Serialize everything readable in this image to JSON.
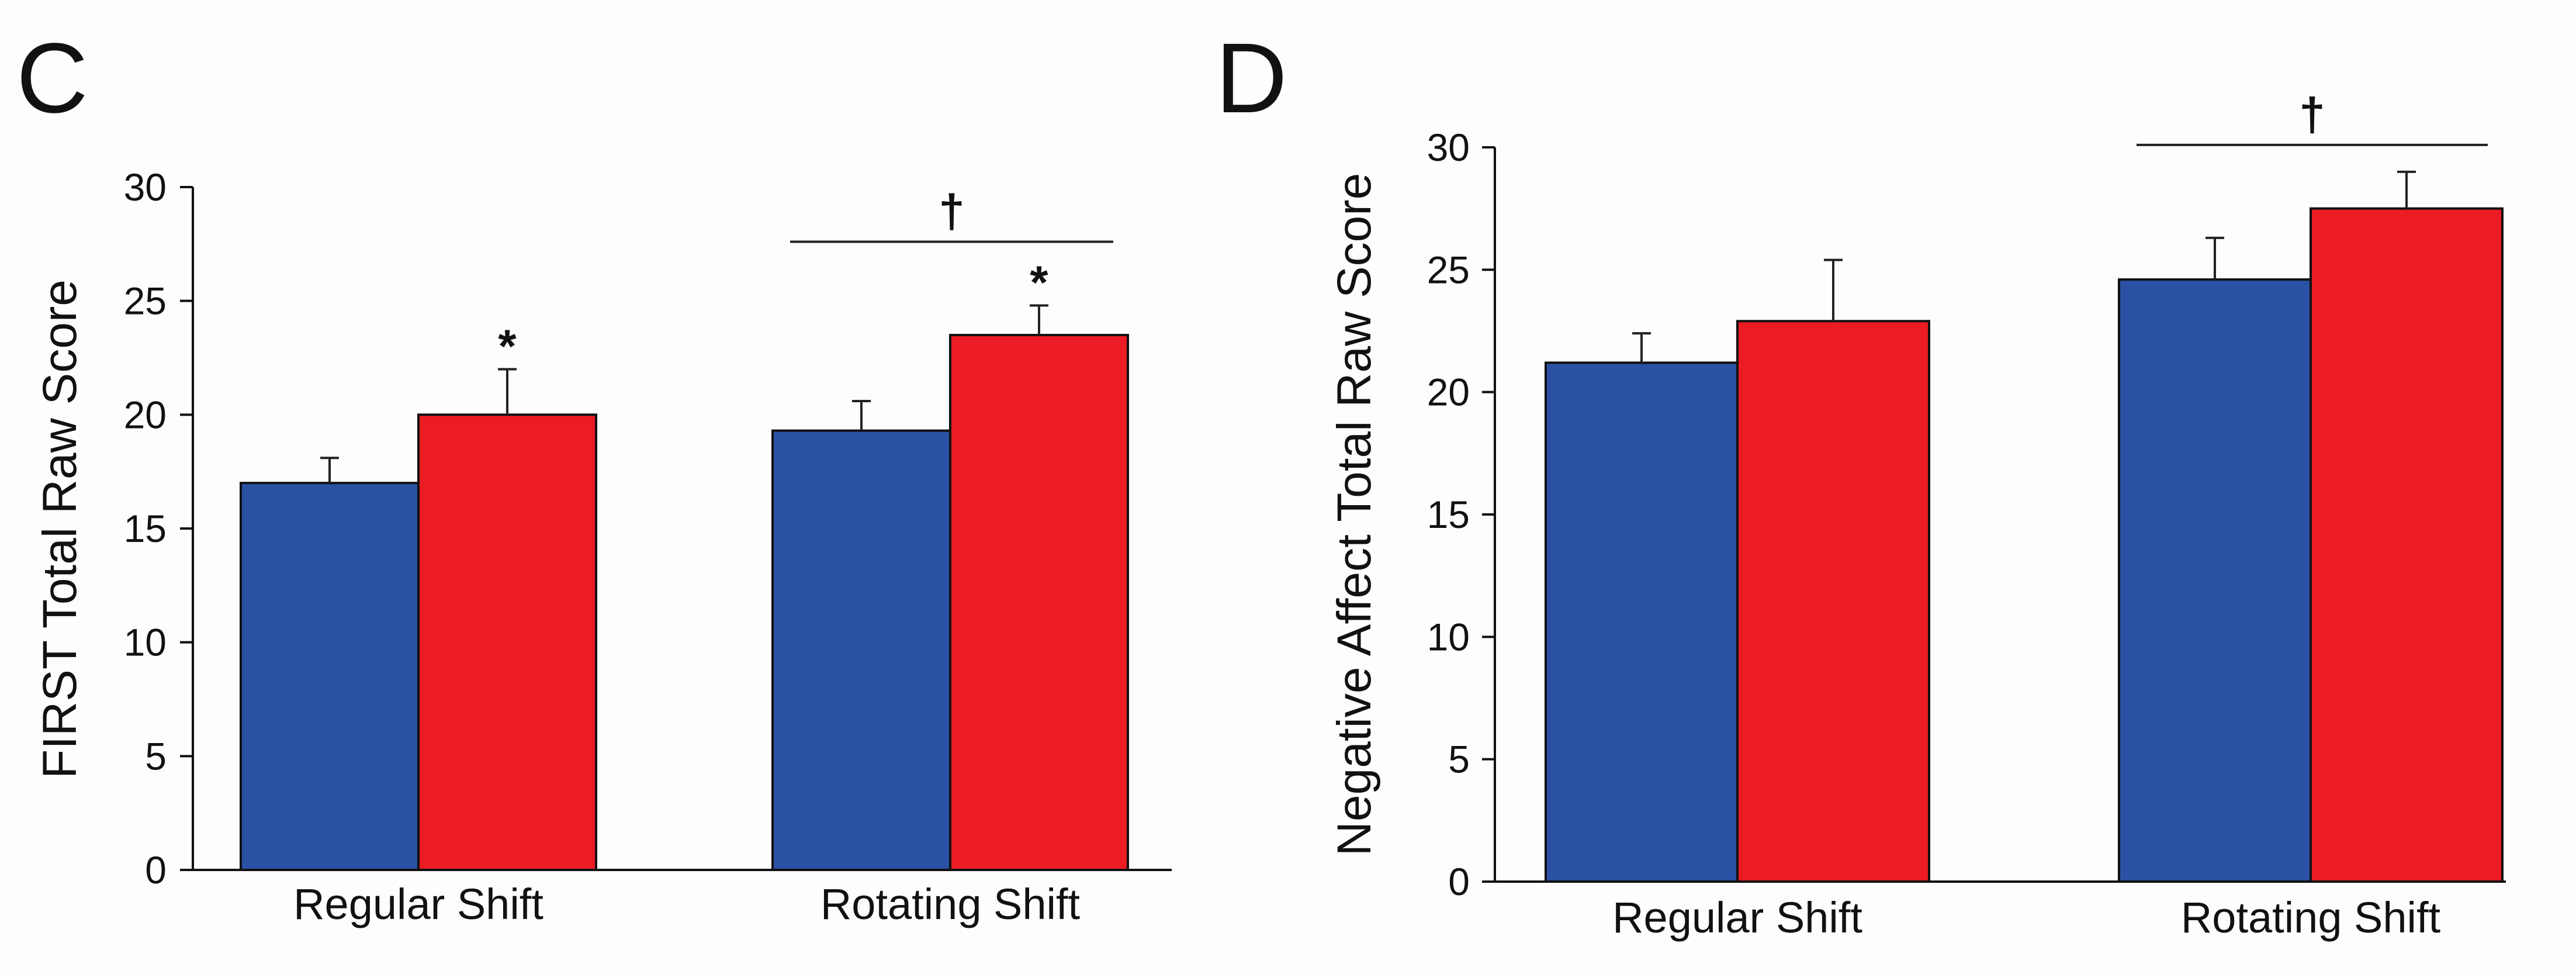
{
  "chart_data": [
    {
      "type": "bar",
      "panel": "C",
      "ylabel": "FIRST Total Raw Score",
      "xlabel": "",
      "ylim": [
        0,
        30
      ],
      "yticks": [
        0,
        5,
        10,
        15,
        20,
        25,
        30
      ],
      "categories": [
        "Regular Shift",
        "Rotating Shift"
      ],
      "series": [
        {
          "color": "#2a51a3",
          "values": [
            17.0,
            19.3
          ],
          "errors": [
            1.1,
            1.3
          ]
        },
        {
          "color": "#ec1c24",
          "values": [
            20.0,
            23.5
          ],
          "errors": [
            2.0,
            1.3
          ]
        }
      ],
      "annotations": [
        {
          "text": "*",
          "category": 0,
          "series": 1
        },
        {
          "text": "*",
          "category": 1,
          "series": 1
        }
      ],
      "brackets": [
        {
          "text": "†",
          "category": 1,
          "y": 27.6
        }
      ]
    },
    {
      "type": "bar",
      "panel": "D",
      "ylabel": "Negative Affect Total Raw Score",
      "xlabel": "",
      "ylim": [
        0,
        30
      ],
      "yticks": [
        0,
        5,
        10,
        15,
        20,
        25,
        30
      ],
      "categories": [
        "Regular Shift",
        "Rotating Shift"
      ],
      "series": [
        {
          "color": "#2a51a3",
          "values": [
            21.2,
            24.6
          ],
          "errors": [
            1.2,
            1.7
          ]
        },
        {
          "color": "#ec1c24",
          "values": [
            22.9,
            27.5
          ],
          "errors": [
            2.5,
            1.5
          ]
        }
      ],
      "annotations": [],
      "brackets": [
        {
          "text": "†",
          "category": 1,
          "y": 30.1
        }
      ]
    }
  ]
}
